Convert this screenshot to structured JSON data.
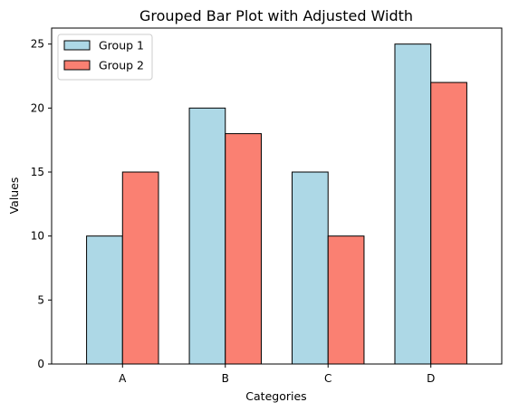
{
  "chart_data": {
    "type": "bar",
    "title": "Grouped Bar Plot with Adjusted Width",
    "xlabel": "Categories",
    "ylabel": "Values",
    "categories": [
      "A",
      "B",
      "C",
      "D"
    ],
    "series": [
      {
        "name": "Group 1",
        "values": [
          10,
          20,
          15,
          25
        ],
        "color": "#add8e6"
      },
      {
        "name": "Group 2",
        "values": [
          15,
          18,
          10,
          22
        ],
        "color": "#fa8072"
      }
    ],
    "ylim": [
      0,
      26.25
    ],
    "yticks": [
      0,
      5,
      10,
      15,
      20,
      25
    ],
    "grid": false,
    "legend_position": "top-left"
  }
}
